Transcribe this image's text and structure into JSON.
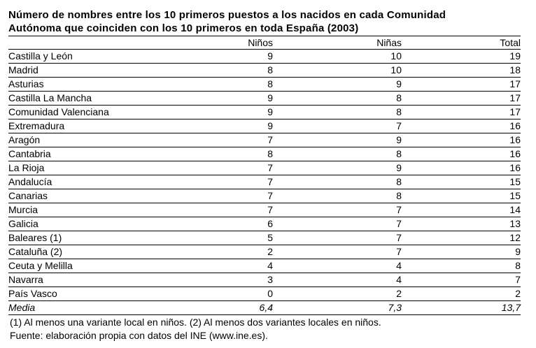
{
  "title_line1": "Número de nombres entre los 10 primeros puestos a los nacidos en cada Comunidad",
  "title_line2": "Autónoma que coinciden con los 10 primeros en toda España (2003)",
  "headers": {
    "region": "",
    "ninos": "Niños",
    "ninas": "Niñas",
    "total": "Total"
  },
  "rows": [
    {
      "region": "Castilla y León",
      "ninos": "9",
      "ninas": "10",
      "total": "19"
    },
    {
      "region": "Madrid",
      "ninos": "8",
      "ninas": "10",
      "total": "18"
    },
    {
      "region": "Asturias",
      "ninos": "8",
      "ninas": "9",
      "total": "17"
    },
    {
      "region": "Castilla La Mancha",
      "ninos": "9",
      "ninas": "8",
      "total": "17"
    },
    {
      "region": "Comunidad Valenciana",
      "ninos": "9",
      "ninas": "8",
      "total": "17"
    },
    {
      "region": "Extremadura",
      "ninos": "9",
      "ninas": "7",
      "total": "16"
    },
    {
      "region": "Aragón",
      "ninos": "7",
      "ninas": "9",
      "total": "16"
    },
    {
      "region": "Cantabria",
      "ninos": "8",
      "ninas": "8",
      "total": "16"
    },
    {
      "region": "La Rioja",
      "ninos": "7",
      "ninas": "9",
      "total": "16"
    },
    {
      "region": "Andalucía",
      "ninos": "7",
      "ninas": "8",
      "total": "15"
    },
    {
      "region": "Canarias",
      "ninos": "7",
      "ninas": "8",
      "total": "15"
    },
    {
      "region": "Murcia",
      "ninos": "7",
      "ninas": "7",
      "total": "14"
    },
    {
      "region": "Galicia",
      "ninos": "6",
      "ninas": "7",
      "total": "13"
    },
    {
      "region": "Baleares (1)",
      "ninos": "5",
      "ninas": "7",
      "total": "12"
    },
    {
      "region": "Cataluña (2)",
      "ninos": "2",
      "ninas": "7",
      "total": "9"
    },
    {
      "region": "Ceuta y Melilla",
      "ninos": "4",
      "ninas": "4",
      "total": "8"
    },
    {
      "region": "Navarra",
      "ninos": "3",
      "ninas": "4",
      "total": "7"
    },
    {
      "region": "País Vasco",
      "ninos": "0",
      "ninas": "2",
      "total": "2"
    }
  ],
  "mean": {
    "region": "Media",
    "ninos": "6,4",
    "ninas": "7,3",
    "total": "13,7"
  },
  "note": "(1) Al menos una variante local en niños. (2) Al menos dos variantes locales en niños.",
  "source": "Fuente: elaboración propia con datos del INE (www.ine.es)."
}
